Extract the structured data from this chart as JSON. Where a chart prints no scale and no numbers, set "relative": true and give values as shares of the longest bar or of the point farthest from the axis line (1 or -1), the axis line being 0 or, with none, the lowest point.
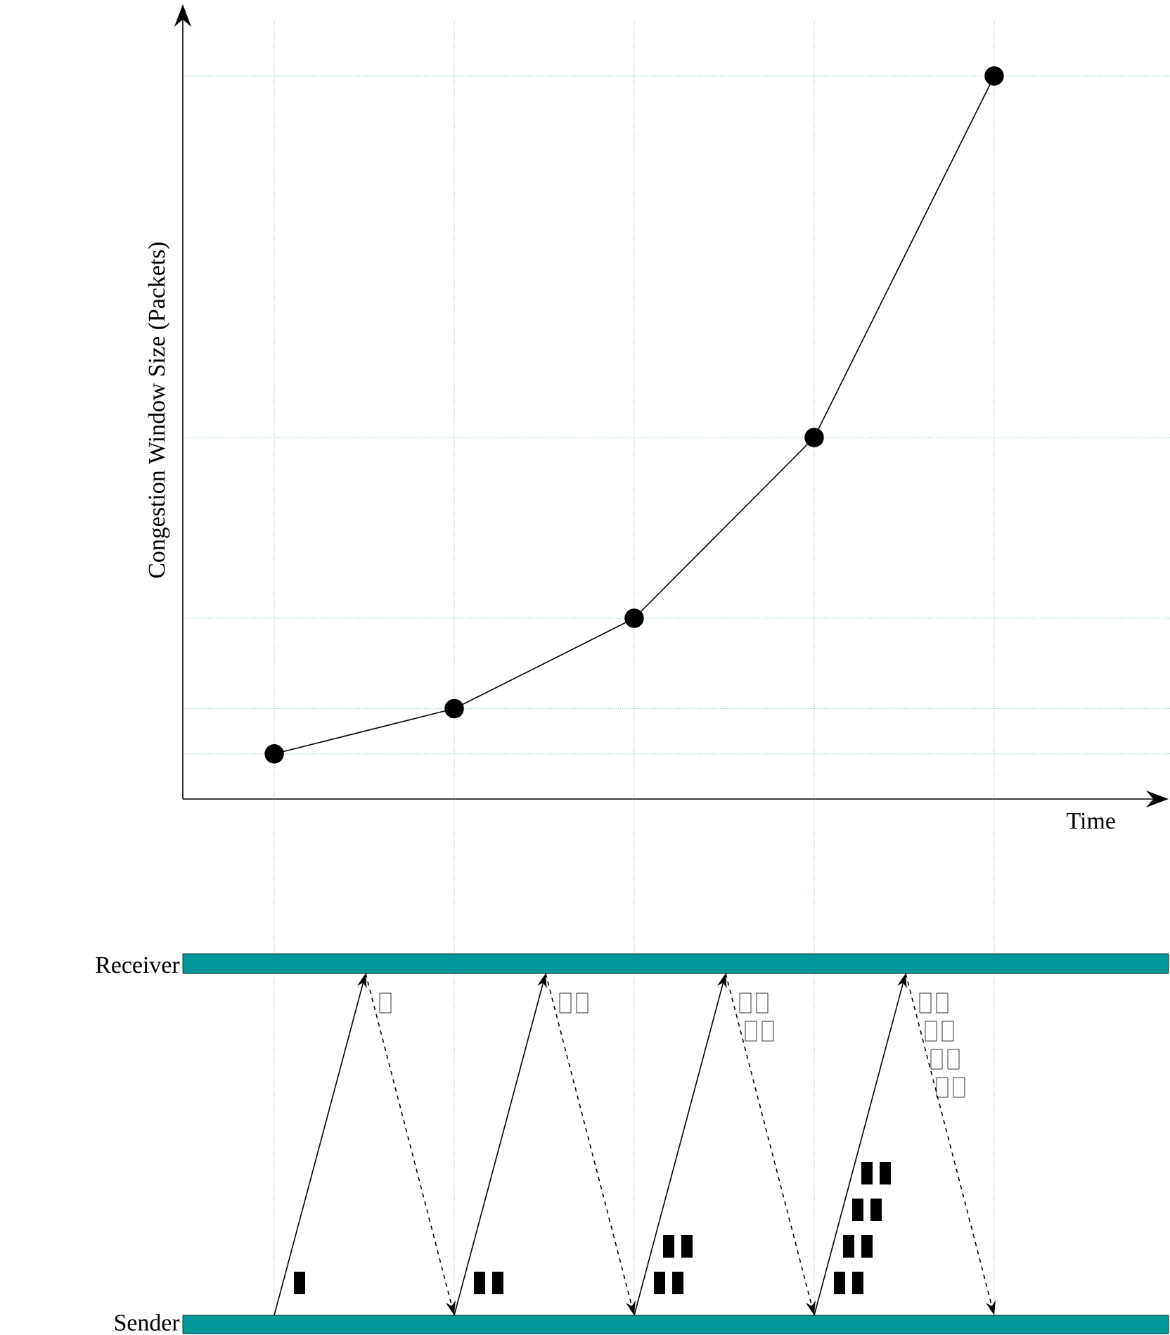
{
  "chart_data": {
    "type": "line",
    "relative": true,
    "xlabel": "Time",
    "ylabel": "Congestion Window Size (Packets)",
    "categories": [
      null,
      null,
      null,
      null,
      null
    ],
    "values": [
      0.0625,
      0.125,
      0.25,
      0.5,
      1
    ],
    "color": "#000000",
    "marker": "circle",
    "grid": true,
    "annotations": [
      "Receiver",
      "Sender"
    ]
  }
}
